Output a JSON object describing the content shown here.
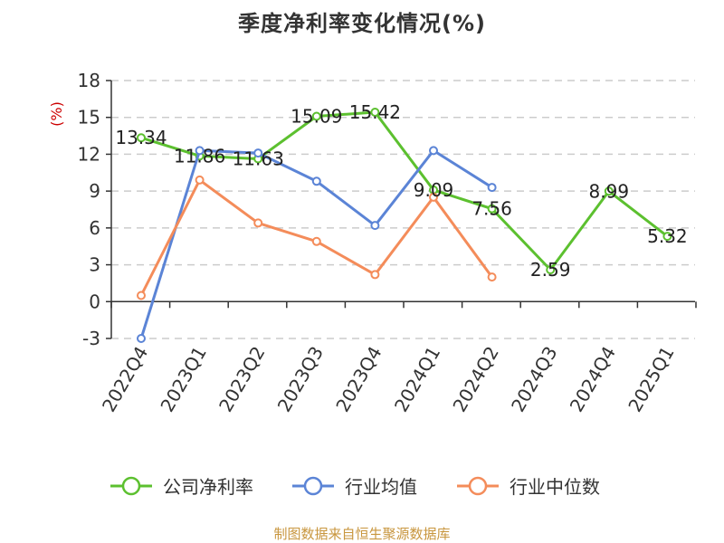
{
  "chart_data": {
    "type": "line",
    "title": "季度净利率变化情况(%)",
    "ylabel": "(%)",
    "ylim": [
      -3,
      18
    ],
    "yticks": [
      -3,
      0,
      3,
      6,
      9,
      12,
      15,
      18
    ],
    "grid": true,
    "legend_position": "bottom",
    "categories": [
      "2022Q4",
      "2023Q1",
      "2023Q2",
      "2023Q3",
      "2023Q4",
      "2024Q1",
      "2024Q2",
      "2024Q3",
      "2024Q4",
      "2025Q1"
    ],
    "series": [
      {
        "name": "公司净利率",
        "color": "#5cc02f",
        "values": [
          13.34,
          11.86,
          11.63,
          15.09,
          15.42,
          9.09,
          7.56,
          2.59,
          8.99,
          5.32
        ],
        "labels": [
          "13.34",
          "11.86",
          "11.63",
          "15.09",
          "15.42",
          "9.09",
          "7.56",
          "2.59",
          "8.99",
          "5.32"
        ]
      },
      {
        "name": "行业均值",
        "color": "#5b84d6",
        "values": [
          -3.0,
          12.3,
          12.1,
          9.8,
          6.2,
          12.3,
          9.3,
          null,
          null,
          null
        ]
      },
      {
        "name": "行业中位数",
        "color": "#f48c5a",
        "values": [
          0.5,
          9.9,
          6.4,
          4.9,
          2.2,
          8.5,
          2.0,
          null,
          null,
          null
        ]
      }
    ]
  },
  "footer": {
    "source": "制图数据来自恒生聚源数据库"
  }
}
